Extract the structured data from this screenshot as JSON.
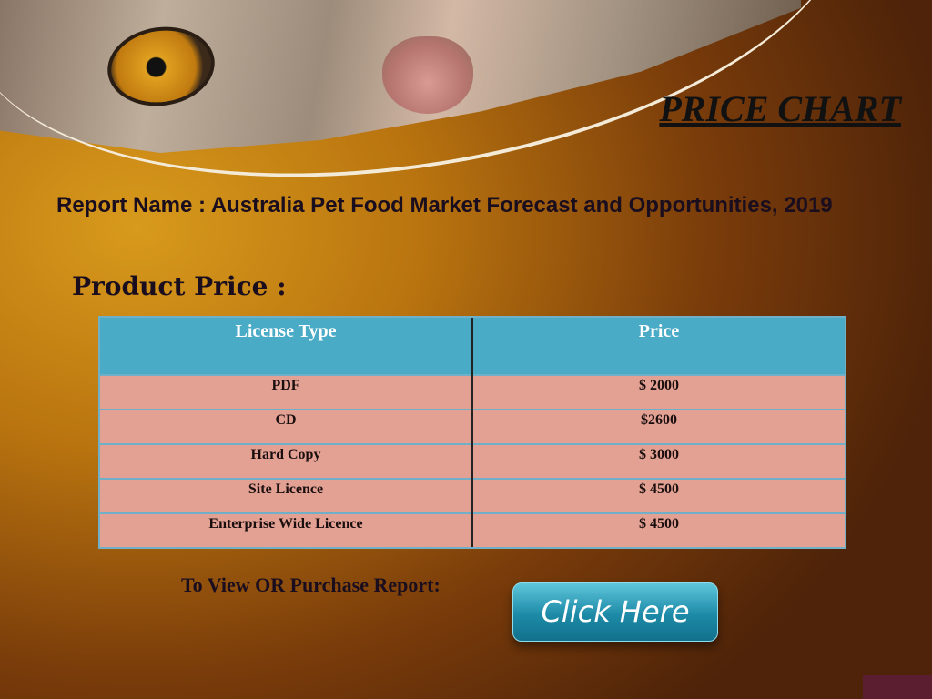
{
  "header": {
    "title": "PRICE CHART"
  },
  "report": {
    "label": "Report Name : ",
    "name": "Australia Pet Food Market Forecast and Opportunities, 2019"
  },
  "product_price_label": "Product Price :",
  "table": {
    "headers": [
      "License Type",
      "Price"
    ],
    "rows": [
      {
        "type": "PDF",
        "price": "$ 2000"
      },
      {
        "type": "CD",
        "price": "$2600"
      },
      {
        "type": "Hard Copy",
        "price": "$ 3000"
      },
      {
        "type": "Site Licence",
        "price": "$ 4500"
      },
      {
        "type": "Enterprise Wide Licence",
        "price": "$ 4500"
      }
    ]
  },
  "cta": {
    "label": "To View OR Purchase Report:",
    "button": "Click Here"
  },
  "colors": {
    "header": "#4aabc6",
    "row": "#e3a194",
    "button": "#1d8aa7"
  }
}
